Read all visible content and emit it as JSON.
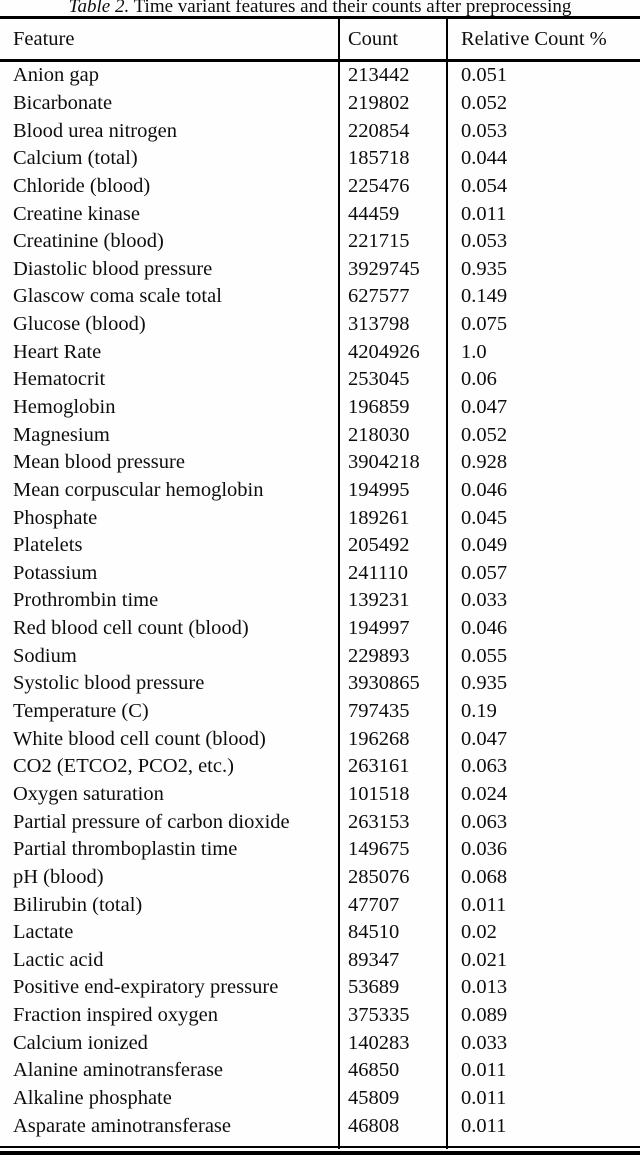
{
  "caption": {
    "label": "Table 2.",
    "text": " Time variant features and their counts after preprocessing"
  },
  "table": {
    "columns": [
      "Feature",
      "Count",
      "Relative Count %"
    ],
    "rows": [
      [
        "Anion gap",
        "213442",
        "0.051"
      ],
      [
        "Bicarbonate",
        "219802",
        "0.052"
      ],
      [
        "Blood urea nitrogen",
        "220854",
        "0.053"
      ],
      [
        "Calcium (total)",
        "185718",
        "0.044"
      ],
      [
        "Chloride (blood)",
        "225476",
        "0.054"
      ],
      [
        "Creatine kinase",
        "44459",
        "0.011"
      ],
      [
        "Creatinine (blood)",
        "221715",
        "0.053"
      ],
      [
        "Diastolic blood pressure",
        "3929745",
        "0.935"
      ],
      [
        "Glascow coma scale total",
        "627577",
        "0.149"
      ],
      [
        "Glucose (blood)",
        "313798",
        "0.075"
      ],
      [
        "Heart Rate",
        "4204926",
        "1.0"
      ],
      [
        "Hematocrit",
        "253045",
        "0.06"
      ],
      [
        "Hemoglobin",
        "196859",
        "0.047"
      ],
      [
        "Magnesium",
        "218030",
        "0.052"
      ],
      [
        "Mean blood pressure",
        "3904218",
        "0.928"
      ],
      [
        "Mean corpuscular hemoglobin",
        "194995",
        "0.046"
      ],
      [
        "Phosphate",
        "189261",
        "0.045"
      ],
      [
        "Platelets",
        "205492",
        "0.049"
      ],
      [
        "Potassium",
        "241110",
        "0.057"
      ],
      [
        "Prothrombin time",
        "139231",
        "0.033"
      ],
      [
        "Red blood cell count (blood)",
        "194997",
        "0.046"
      ],
      [
        "Sodium",
        "229893",
        "0.055"
      ],
      [
        "Systolic blood pressure",
        "3930865",
        "0.935"
      ],
      [
        "Temperature (C)",
        "797435",
        "0.19"
      ],
      [
        "White blood cell count (blood)",
        "196268",
        "0.047"
      ],
      [
        "CO2 (ETCO2, PCO2, etc.)",
        "263161",
        "0.063"
      ],
      [
        "Oxygen saturation",
        "101518",
        "0.024"
      ],
      [
        "Partial pressure of carbon dioxide",
        "263153",
        "0.063"
      ],
      [
        "Partial thromboplastin time",
        "149675",
        "0.036"
      ],
      [
        "pH (blood)",
        "285076",
        "0.068"
      ],
      [
        "Bilirubin (total)",
        "47707",
        "0.011"
      ],
      [
        "Lactate",
        "84510",
        "0.02"
      ],
      [
        "Lactic acid",
        "89347",
        "0.021"
      ],
      [
        "Positive end-expiratory pressure",
        "53689",
        "0.013"
      ],
      [
        "Fraction inspired oxygen",
        "375335",
        "0.089"
      ],
      [
        "Calcium ionized",
        "140283",
        "0.033"
      ],
      [
        "Alanine aminotransferase",
        "46850",
        "0.011"
      ],
      [
        "Alkaline phosphate",
        "45809",
        "0.011"
      ],
      [
        "Asparate aminotransferase",
        "46808",
        "0.011"
      ]
    ]
  },
  "colors": {
    "text": "#0d0d0d",
    "background": "#fefefe",
    "rule": "#000000"
  }
}
